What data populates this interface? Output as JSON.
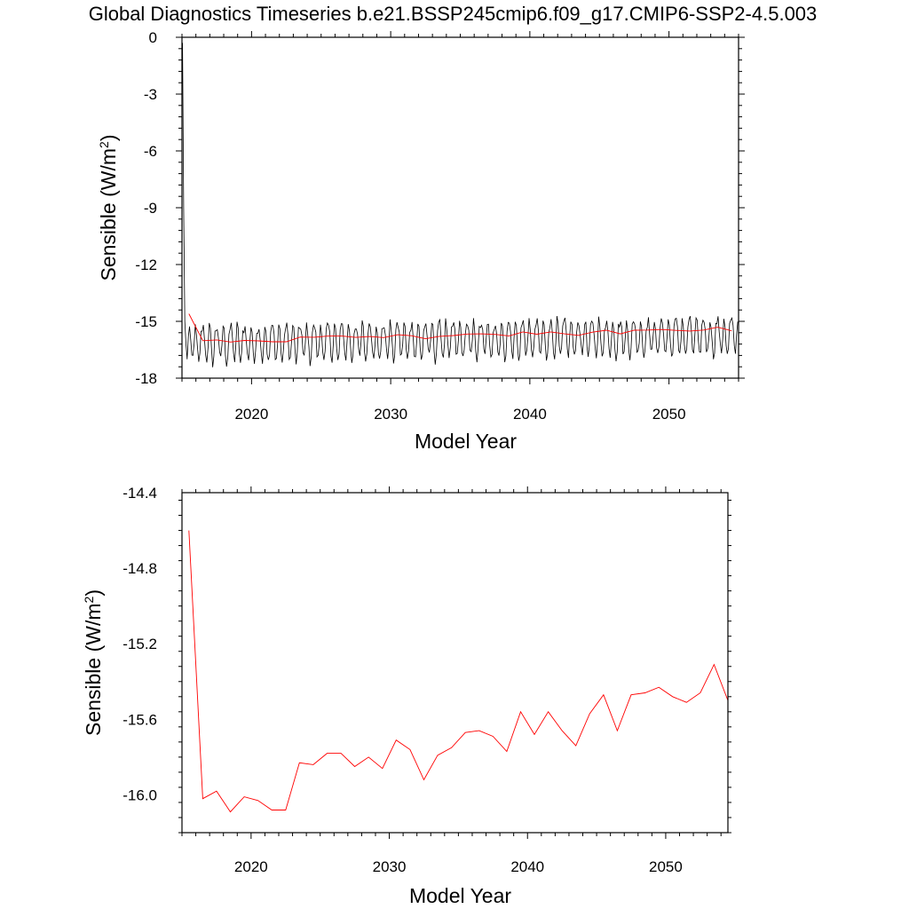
{
  "title": "Global Diagnostics Timeseries b.e21.BSSP245cmip6.f09_g17.CMIP6-SSP2-4.5.003",
  "colors": {
    "monthly": "#000000",
    "annual": "#ff0000",
    "frame": "#000000",
    "background": "#ffffff"
  },
  "chart_data": [
    {
      "type": "line",
      "xlabel": "Model Year",
      "ylabel": "Sensible (W/m",
      "ylabel_sup": "2",
      "ylabel_close": ")",
      "xlim": [
        2015,
        2055
      ],
      "ylim": [
        -18,
        0
      ],
      "xticks": [
        2020,
        2030,
        2040,
        2050
      ],
      "xtick_labels": [
        "2020",
        "2030",
        "2040",
        "2050"
      ],
      "yticks": [
        0,
        -3,
        -6,
        -9,
        -12,
        -15,
        -18
      ],
      "ytick_labels": [
        "0",
        "-3",
        "-6",
        "-9",
        "-12",
        "-15",
        "-18"
      ],
      "grid": false,
      "legend": "none",
      "series": [
        {
          "kind": "monthly",
          "x_start": 2015.04,
          "x_step": 0.0833,
          "seasonal_mean": [
            -15.5,
            -16.6,
            -17.2,
            -16.8,
            -15.6,
            -15.4,
            -15.3,
            -15.8,
            -16.8,
            -17.0,
            -16.2,
            -15.2
          ],
          "initial_values": [
            -0.3,
            -9.0,
            -15.0,
            -16.2,
            -17.0,
            -15.8
          ]
        },
        {
          "kind": "annual",
          "x": [
            2015.5,
            2016.5,
            2017.5,
            2018.5,
            2019.5,
            2020.5,
            2021.5,
            2022.5,
            2023.5,
            2024.5,
            2025.5,
            2026.5,
            2027.5,
            2028.5,
            2029.5,
            2030.5,
            2031.5,
            2032.5,
            2033.5,
            2034.5,
            2035.5,
            2036.5,
            2037.5,
            2038.5,
            2039.5,
            2040.5,
            2041.5,
            2042.5,
            2043.5,
            2044.5,
            2045.5,
            2046.5,
            2047.5,
            2048.5,
            2049.5,
            2050.5,
            2051.5,
            2052.5,
            2053.5,
            2054.5
          ],
          "y": [
            -14.6,
            -16.02,
            -15.98,
            -16.09,
            -16.01,
            -16.03,
            -16.08,
            -16.08,
            -15.83,
            -15.84,
            -15.78,
            -15.78,
            -15.85,
            -15.8,
            -15.86,
            -15.71,
            -15.76,
            -15.92,
            -15.79,
            -15.75,
            -15.67,
            -15.66,
            -15.69,
            -15.77,
            -15.56,
            -15.68,
            -15.56,
            -15.66,
            -15.74,
            -15.57,
            -15.47,
            -15.66,
            -15.47,
            -15.46,
            -15.43,
            -15.48,
            -15.51,
            -15.46,
            -15.31,
            -15.5
          ]
        }
      ]
    },
    {
      "type": "line",
      "xlabel": "Model Year",
      "ylabel": "Sensible (W/m",
      "ylabel_sup": "2",
      "ylabel_close": ")",
      "xlim": [
        2015,
        2054.5
      ],
      "ylim": [
        -16.2,
        -14.4
      ],
      "xticks": [
        2020,
        2030,
        2040,
        2050
      ],
      "xtick_labels": [
        "2020",
        "2030",
        "2040",
        "2050"
      ],
      "yticks": [
        -14.4,
        -14.8,
        -15.2,
        -15.6,
        -16.0
      ],
      "ytick_labels": [
        "-14.4",
        "-14.8",
        "-15.2",
        "-15.6",
        "-16.0"
      ],
      "grid": false,
      "legend": "none",
      "series": [
        {
          "kind": "annual",
          "x": [
            2015.5,
            2016.5,
            2017.5,
            2018.5,
            2019.5,
            2020.5,
            2021.5,
            2022.5,
            2023.5,
            2024.5,
            2025.5,
            2026.5,
            2027.5,
            2028.5,
            2029.5,
            2030.5,
            2031.5,
            2032.5,
            2033.5,
            2034.5,
            2035.5,
            2036.5,
            2037.5,
            2038.5,
            2039.5,
            2040.5,
            2041.5,
            2042.5,
            2043.5,
            2044.5,
            2045.5,
            2046.5,
            2047.5,
            2048.5,
            2049.5,
            2050.5,
            2051.5,
            2052.5,
            2053.5,
            2054.5
          ],
          "y": [
            -14.6,
            -16.02,
            -15.98,
            -16.09,
            -16.01,
            -16.03,
            -16.08,
            -16.08,
            -15.83,
            -15.84,
            -15.78,
            -15.78,
            -15.85,
            -15.8,
            -15.86,
            -15.71,
            -15.76,
            -15.92,
            -15.79,
            -15.75,
            -15.67,
            -15.66,
            -15.69,
            -15.77,
            -15.56,
            -15.68,
            -15.56,
            -15.66,
            -15.74,
            -15.57,
            -15.47,
            -15.66,
            -15.47,
            -15.46,
            -15.43,
            -15.48,
            -15.51,
            -15.46,
            -15.31,
            -15.5
          ]
        }
      ]
    }
  ]
}
